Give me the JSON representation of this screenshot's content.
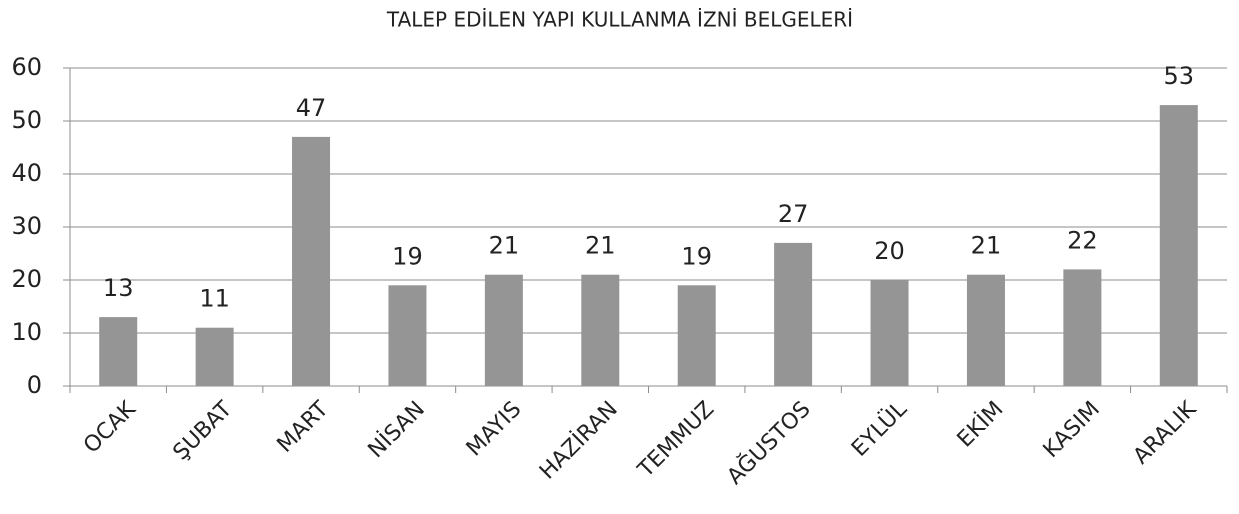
{
  "chart_data": {
    "type": "bar",
    "title": "TALEP EDİLEN YAPI KULLANMA İZNİ BELGELERİ",
    "categories": [
      "OCAK",
      "ŞUBAT",
      "MART",
      "NİSAN",
      "MAYIS",
      "HAZİRAN",
      "TEMMUZ",
      "AĞUSTOS",
      "EYLÜL",
      "EKİM",
      "KASIM",
      "ARALIK"
    ],
    "values": [
      13,
      11,
      47,
      19,
      21,
      21,
      19,
      27,
      20,
      21,
      22,
      53
    ],
    "color": "#959595",
    "ylim": [
      0,
      60
    ],
    "yticks": [
      0,
      10,
      20,
      30,
      40,
      50,
      60
    ],
    "grid": true
  }
}
